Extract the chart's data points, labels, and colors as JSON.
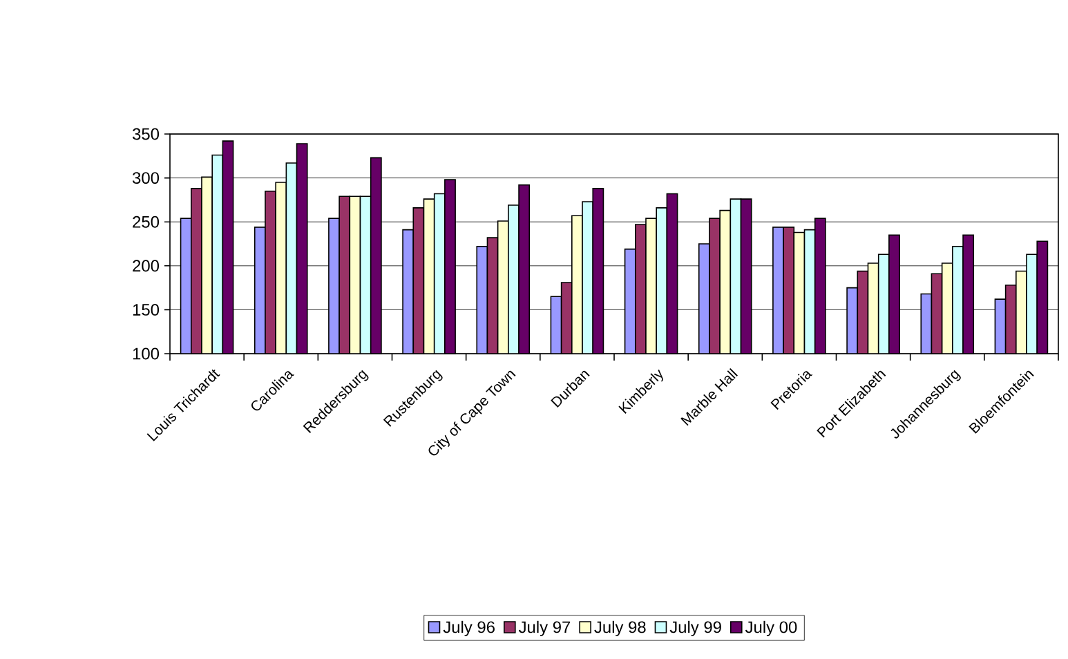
{
  "chart_data": {
    "type": "bar",
    "categories": [
      "Louis Trichardt",
      "Carolina",
      "Reddersburg",
      "Rustenburg",
      "City of Cape Town",
      "Durban",
      "Kimberly",
      "Marble Hall",
      "Pretoria",
      "Port Elizabeth",
      "Johannesburg",
      "Bloemfontein"
    ],
    "series": [
      {
        "name": "July 96",
        "color": "#9999ff",
        "values": [
          254,
          244,
          254,
          241,
          222,
          165,
          219,
          225,
          244,
          175,
          168,
          162
        ]
      },
      {
        "name": "July 97",
        "color": "#993366",
        "values": [
          288,
          285,
          279,
          266,
          232,
          181,
          247,
          254,
          244,
          194,
          191,
          178
        ]
      },
      {
        "name": "July 98",
        "color": "#ffffcc",
        "values": [
          301,
          295,
          279,
          276,
          251,
          257,
          254,
          263,
          238,
          203,
          203,
          194
        ]
      },
      {
        "name": "July 99",
        "color": "#ccffff",
        "values": [
          326,
          317,
          279,
          282,
          269,
          273,
          266,
          276,
          241,
          213,
          222,
          213
        ]
      },
      {
        "name": "July 00",
        "color": "#660066",
        "values": [
          342,
          339,
          323,
          298,
          292,
          288,
          282,
          276,
          254,
          235,
          235,
          228
        ]
      }
    ],
    "ylim": [
      100,
      350
    ],
    "yticks": [
      100,
      150,
      200,
      250,
      300,
      350
    ],
    "grid": "y",
    "legend": "bottom"
  }
}
